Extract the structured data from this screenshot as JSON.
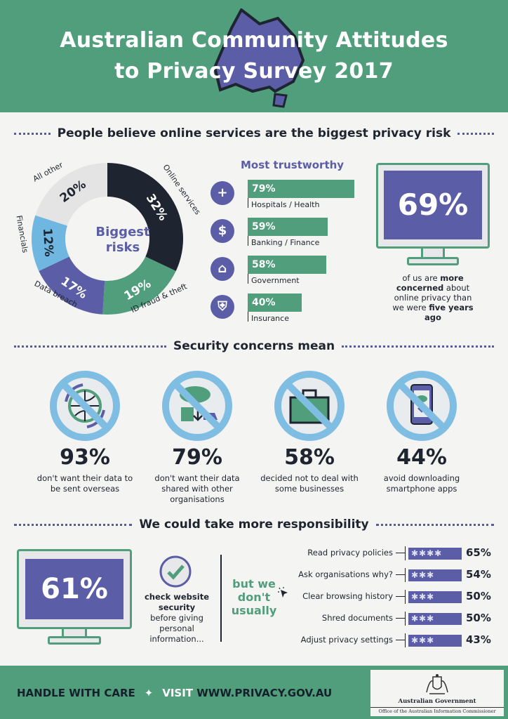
{
  "header": {
    "title_line1": "Australian Community Attitudes",
    "title_line2": "to Privacy Survey 2017"
  },
  "section1": {
    "title": "People believe online services are the biggest privacy risk",
    "donut": {
      "center_line1": "Biggest",
      "center_line2": "risks",
      "segments": [
        {
          "label": "Online services",
          "pct_label": "32%",
          "value": 32,
          "color": "#1e2530"
        },
        {
          "label": "ID fraud & theft",
          "pct_label": "19%",
          "value": 19,
          "color": "#519e7c"
        },
        {
          "label": "Data breach",
          "pct_label": "17%",
          "value": 17,
          "color": "#5b5ea6"
        },
        {
          "label": "Financials",
          "pct_label": "12%",
          "value": 12,
          "color": "#6fb6e0"
        },
        {
          "label": "All other",
          "pct_label": "20%",
          "value": 20,
          "color": "#e4e4e4"
        }
      ]
    },
    "trust": {
      "title": "Most trustworthy",
      "items": [
        {
          "label": "Hospitals / Health",
          "pct_label": "79%",
          "value": 79,
          "icon": "plus-icon",
          "glyph": "+"
        },
        {
          "label": "Banking / Finance",
          "pct_label": "59%",
          "value": 59,
          "icon": "dollar-icon",
          "glyph": "$"
        },
        {
          "label": "Government",
          "pct_label": "58%",
          "value": 58,
          "icon": "government-building-icon",
          "glyph": "⌂"
        },
        {
          "label": "Insurance",
          "pct_label": "40%",
          "value": 40,
          "icon": "shield-icon",
          "glyph": "⛨"
        }
      ]
    },
    "monitor": {
      "pct_label": "69%",
      "text_1": "of us are ",
      "text_bold_1": "more concerned",
      "text_2": " about online privacy than we were ",
      "text_bold_2": "five years ago"
    }
  },
  "section2": {
    "title": "Security concerns mean",
    "items": [
      {
        "pct_label": "93%",
        "desc": "don't want their data to be sent overseas",
        "icon": "globe-icon"
      },
      {
        "pct_label": "79%",
        "desc": "don't want their data shared with other organisations",
        "icon": "cloud-share-icon"
      },
      {
        "pct_label": "58%",
        "desc": "decided not to deal with some businesses",
        "icon": "briefcase-icon"
      },
      {
        "pct_label": "44%",
        "desc": "avoid downloading smartphone apps",
        "icon": "smartphone-download-icon"
      }
    ]
  },
  "section3": {
    "title": "We could take more responsibility",
    "monitor_pct_label": "61%",
    "check_bold": "check website security",
    "check_rest": "before giving personal information...",
    "but_we_line1": "but we",
    "but_we_line2": "don't",
    "but_we_line3": "usually",
    "items": [
      {
        "label": "Read privacy policies",
        "pct_label": "65%",
        "value": 65
      },
      {
        "label": "Ask organisations why?",
        "pct_label": "54%",
        "value": 54
      },
      {
        "label": "Clear browsing history",
        "pct_label": "50%",
        "value": 50
      },
      {
        "label": "Shred documents",
        "pct_label": "50%",
        "value": 50
      },
      {
        "label": "Adjust privacy settings",
        "pct_label": "43%",
        "value": 43
      }
    ]
  },
  "footer": {
    "handle": "HANDLE WITH CARE",
    "visit": "VISIT",
    "url": "WWW.PRIVACY.GOV.AU",
    "gov_line1": "Australian Government",
    "gov_line2": "Office of the Australian Information Commissioner"
  },
  "colors": {
    "green": "#519e7c",
    "purple": "#5b5ea6",
    "dark": "#1e2430",
    "light_blue": "#6fb6e0",
    "no_sign": "#7fbde2"
  }
}
